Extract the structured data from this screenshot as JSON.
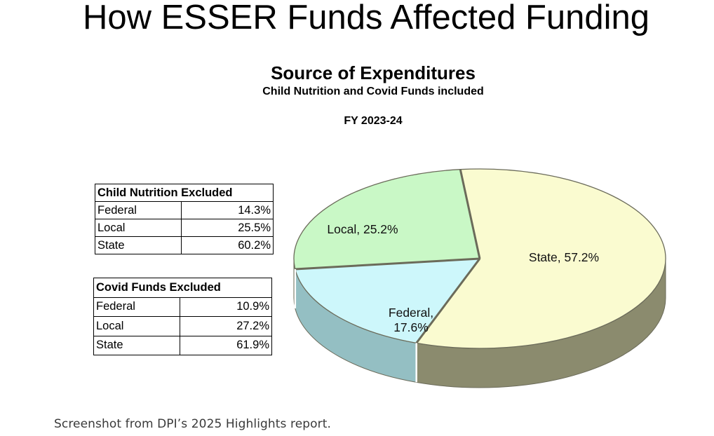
{
  "slide": {
    "title": "How ESSER Funds Affected Funding"
  },
  "chart_data": {
    "type": "pie",
    "title": "Source of Expenditures",
    "subtitle": "Child Nutrition and Covid Funds included",
    "period": "FY 2023-24",
    "categories": [
      "State",
      "Federal",
      "Local"
    ],
    "values": [
      57.2,
      17.6,
      25.2
    ],
    "labels": [
      "State, 57.2%",
      "Federal, 17.6%",
      "Local, 25.2%"
    ],
    "colors": {
      "State": "#fafbd0",
      "State_side": "#8b8b6e",
      "Federal": "#cdf7fb",
      "Federal_side": "#94bfc3",
      "Local": "#c9f8c6",
      "Local_side": "#a7caa4",
      "edge": "#6b6b5a"
    }
  },
  "tables": [
    {
      "header": "Child Nutrition Excluded",
      "rows": [
        {
          "category": "Federal",
          "value": "14.3%"
        },
        {
          "category": "Local",
          "value": "25.5%"
        },
        {
          "category": "State",
          "value": "60.2%"
        }
      ]
    },
    {
      "header": "Covid Funds Excluded",
      "rows": [
        {
          "category": "Federal",
          "value": "10.9%"
        },
        {
          "category": "Local",
          "value": "27.2%"
        },
        {
          "category": "State",
          "value": "61.9%"
        }
      ]
    }
  ],
  "caption": "Screenshot from DPI’s 2025 Highlights report."
}
